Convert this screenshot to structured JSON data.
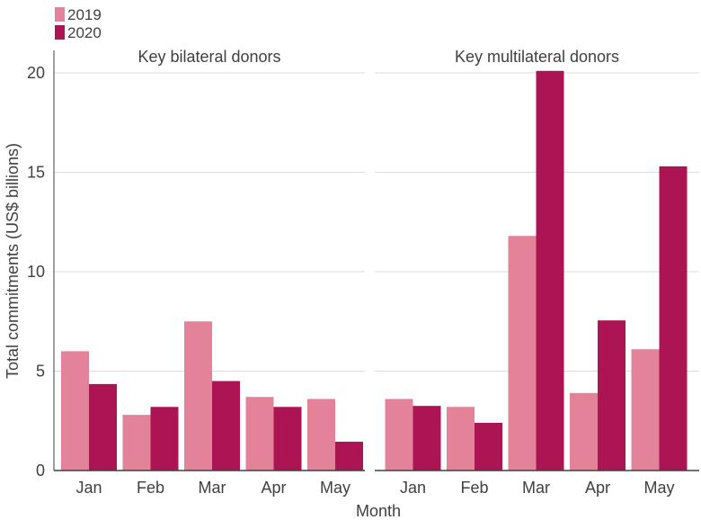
{
  "legend": {
    "items": [
      {
        "label": "2019",
        "color": "#e38299"
      },
      {
        "label": "2020",
        "color": "#ad1453"
      }
    ]
  },
  "xlabel": "Month",
  "ylabel": "Total commitments (US$ billions)",
  "chart_data": {
    "type": "bar",
    "ylim": [
      0,
      20
    ],
    "yticks": [
      0,
      5,
      10,
      15,
      20
    ],
    "grid": true,
    "legend_position": "top-left",
    "categories": [
      "Jan",
      "Feb",
      "Mar",
      "Apr",
      "May"
    ],
    "panels": [
      {
        "title": "Key bilateral donors",
        "series": [
          {
            "name": "2019",
            "color": "#e38299",
            "values": [
              6.0,
              2.8,
              7.5,
              3.7,
              3.6
            ]
          },
          {
            "name": "2020",
            "color": "#ad1453",
            "values": [
              4.35,
              3.2,
              4.5,
              3.2,
              1.45
            ]
          }
        ]
      },
      {
        "title": "Key multilateral donors",
        "series": [
          {
            "name": "2019",
            "color": "#e38299",
            "values": [
              3.6,
              3.2,
              11.8,
              3.9,
              6.1
            ]
          },
          {
            "name": "2020",
            "color": "#ad1453",
            "values": [
              3.25,
              2.4,
              20.1,
              7.55,
              15.3
            ]
          }
        ]
      }
    ]
  }
}
